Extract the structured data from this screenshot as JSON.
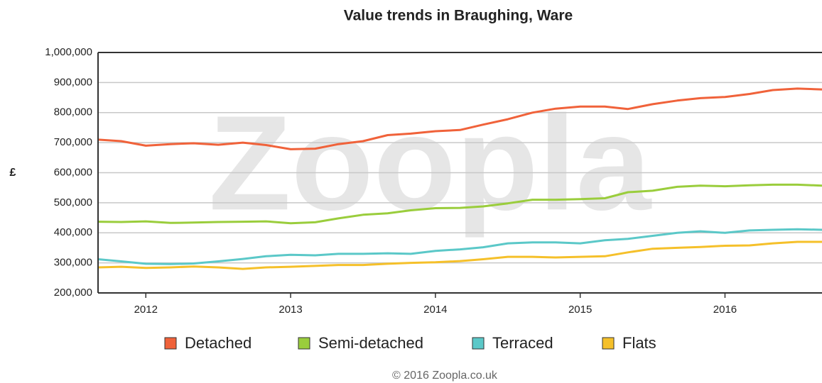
{
  "chart_data": {
    "type": "line",
    "title": "Value trends in Braughing, Ware",
    "y_label": "£",
    "watermark": "Zoopla",
    "footer": "© 2016 Zoopla.co.uk",
    "x": [
      2011.67,
      2011.83,
      2012,
      2012.17,
      2012.33,
      2012.5,
      2012.67,
      2012.83,
      2013,
      2013.17,
      2013.33,
      2013.5,
      2013.67,
      2013.83,
      2014,
      2014.17,
      2014.33,
      2014.5,
      2014.67,
      2014.83,
      2015,
      2015.17,
      2015.33,
      2015.5,
      2015.67,
      2015.83,
      2016,
      2016.17,
      2016.33,
      2016.5,
      2016.67
    ],
    "series": [
      {
        "name": "Detached",
        "color": "#f0623a",
        "values": [
          710000,
          705000,
          690000,
          695000,
          698000,
          693000,
          700000,
          692000,
          678000,
          680000,
          695000,
          705000,
          725000,
          730000,
          738000,
          742000,
          760000,
          778000,
          800000,
          813000,
          820000,
          820000,
          812000,
          828000,
          840000,
          848000,
          852000,
          862000,
          875000,
          880000,
          877000
        ]
      },
      {
        "name": "Semi-detached",
        "color": "#9acd3c",
        "values": [
          437000,
          436000,
          438000,
          433000,
          434000,
          436000,
          437000,
          438000,
          432000,
          435000,
          448000,
          460000,
          465000,
          475000,
          482000,
          483000,
          488000,
          498000,
          510000,
          510000,
          512000,
          515000,
          535000,
          540000,
          553000,
          557000,
          555000,
          558000,
          560000,
          560000,
          557000
        ]
      },
      {
        "name": "Terraced",
        "color": "#5bc8c8",
        "values": [
          312000,
          305000,
          297000,
          296000,
          298000,
          305000,
          313000,
          322000,
          327000,
          325000,
          330000,
          330000,
          332000,
          330000,
          340000,
          345000,
          352000,
          365000,
          368000,
          368000,
          365000,
          375000,
          380000,
          390000,
          400000,
          405000,
          400000,
          408000,
          410000,
          412000,
          410000
        ]
      },
      {
        "name": "Flats",
        "color": "#f5c02a",
        "values": [
          285000,
          287000,
          283000,
          285000,
          288000,
          285000,
          280000,
          285000,
          287000,
          290000,
          293000,
          293000,
          297000,
          300000,
          302000,
          306000,
          312000,
          320000,
          320000,
          318000,
          320000,
          322000,
          335000,
          347000,
          350000,
          353000,
          357000,
          358000,
          365000,
          370000,
          370000
        ]
      }
    ],
    "xlim": [
      2011.67,
      2016.67
    ],
    "xticks": [
      2012,
      2013,
      2014,
      2015,
      2016
    ],
    "ylim": [
      200000,
      1000000
    ],
    "yticks": [
      {
        "value": 200000,
        "label": "200,000"
      },
      {
        "value": 300000,
        "label": "300,000"
      },
      {
        "value": 400000,
        "label": "400,000"
      },
      {
        "value": 500000,
        "label": "500,000"
      },
      {
        "value": 600000,
        "label": "600,000"
      },
      {
        "value": 700000,
        "label": "700,000"
      },
      {
        "value": 800000,
        "label": "800,000"
      },
      {
        "value": 900000,
        "label": "900,000"
      },
      {
        "value": 1000000,
        "label": "1,000,000"
      }
    ],
    "grid": true,
    "legend": "bottom"
  }
}
